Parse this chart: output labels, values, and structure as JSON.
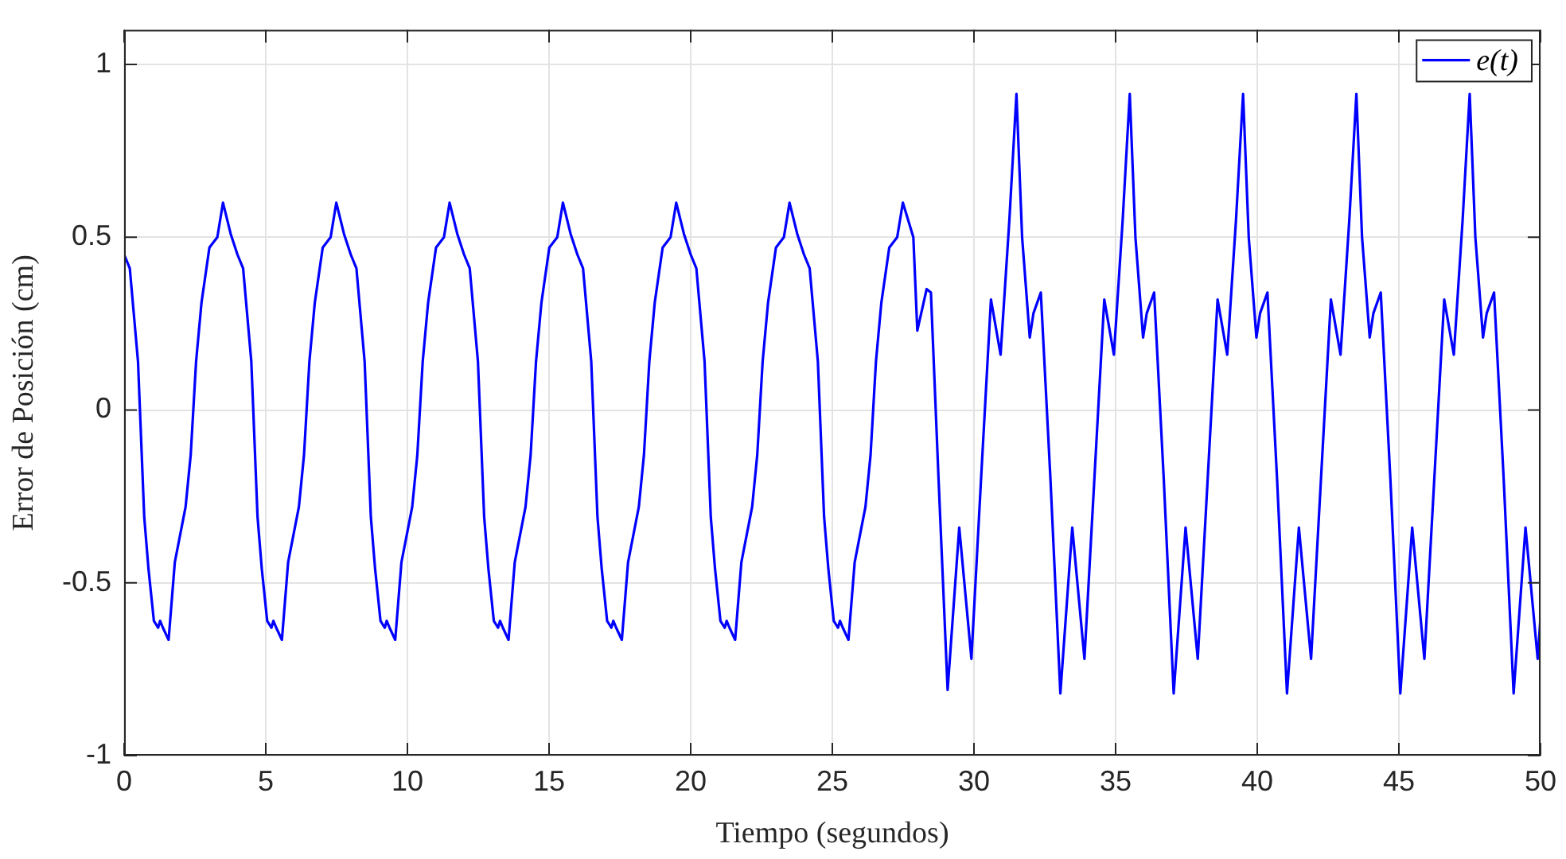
{
  "chart_data": {
    "type": "line",
    "xlabel": "Tiempo (segundos)",
    "ylabel": "Error de Posición (cm)",
    "xlim": [
      0,
      50
    ],
    "ylim": [
      -1,
      1.1
    ],
    "xticks": [
      0,
      5,
      10,
      15,
      20,
      25,
      30,
      35,
      40,
      45,
      50
    ],
    "yticks": [
      -1,
      -0.5,
      0,
      0.5,
      1
    ],
    "grid": true,
    "legend": "top right",
    "marker": "none",
    "line_style": "solid",
    "series": [
      {
        "name": "e(t)",
        "color": "#0000ff",
        "x": [
          0,
          0.2,
          0.49,
          0.71,
          0.86,
          1.05,
          1.2,
          1.27,
          1.37,
          1.57,
          1.79,
          2.17,
          2.35,
          2.54,
          2.73,
          3.01,
          3.29,
          3.49,
          3.76,
          4,
          4.2,
          4.49,
          4.71,
          4.86,
          5.05,
          5.2,
          5.27,
          5.37,
          5.57,
          5.79,
          6.17,
          6.35,
          6.54,
          6.73,
          7.01,
          7.29,
          7.49,
          7.76,
          8,
          8.2,
          8.49,
          8.71,
          8.86,
          9.05,
          9.2,
          9.27,
          9.37,
          9.57,
          9.79,
          10.17,
          10.35,
          10.54,
          10.73,
          11.01,
          11.29,
          11.49,
          11.76,
          12,
          12.2,
          12.49,
          12.71,
          12.86,
          13.05,
          13.2,
          13.27,
          13.37,
          13.57,
          13.79,
          14.17,
          14.35,
          14.54,
          14.73,
          15.01,
          15.29,
          15.49,
          15.76,
          16,
          16.2,
          16.49,
          16.71,
          16.86,
          17.05,
          17.2,
          17.27,
          17.37,
          17.57,
          17.79,
          18.17,
          18.35,
          18.54,
          18.73,
          19.01,
          19.29,
          19.49,
          19.76,
          20,
          20.2,
          20.49,
          20.71,
          20.86,
          21.05,
          21.2,
          21.27,
          21.37,
          21.57,
          21.79,
          22.17,
          22.35,
          22.54,
          22.73,
          23.01,
          23.29,
          23.49,
          23.76,
          24,
          24.2,
          24.49,
          24.71,
          24.86,
          25.05,
          25.2,
          25.27,
          25.37,
          25.57,
          25.79,
          26.17,
          26.35,
          26.54,
          26.73,
          27.01,
          27.29,
          27.49,
          27.86,
          28,
          28.33,
          28.48,
          28.75,
          29.07,
          29.48,
          29.91,
          30.25,
          30.6,
          30.94,
          31.25,
          31.5,
          31.7,
          31.97,
          32.1,
          32.36,
          32.7,
          33.05,
          33.47,
          33.9,
          34.25,
          34.6,
          34.94,
          35.25,
          35.5,
          35.7,
          35.97,
          36.1,
          36.36,
          36.7,
          37.05,
          37.47,
          37.9,
          38.25,
          38.6,
          38.94,
          39.25,
          39.5,
          39.7,
          39.97,
          40.1,
          40.36,
          40.7,
          41.05,
          41.47,
          41.9,
          42.25,
          42.6,
          42.94,
          43.25,
          43.5,
          43.7,
          43.97,
          44.1,
          44.36,
          44.7,
          45.05,
          45.47,
          45.9,
          46.25,
          46.6,
          46.94,
          47.25,
          47.5,
          47.7,
          47.97,
          48.1,
          48.36,
          48.7,
          49.05,
          49.47,
          49.9,
          50
        ],
        "values": [
          0.45,
          0.41,
          0.14,
          -0.31,
          -0.46,
          -0.61,
          -0.63,
          -0.61,
          -0.63,
          -0.665,
          -0.44,
          -0.28,
          -0.13,
          0.14,
          0.31,
          0.47,
          0.5,
          0.6,
          0.51,
          0.45,
          0.41,
          0.14,
          -0.31,
          -0.46,
          -0.61,
          -0.63,
          -0.61,
          -0.63,
          -0.665,
          -0.44,
          -0.28,
          -0.13,
          0.14,
          0.31,
          0.47,
          0.5,
          0.6,
          0.51,
          0.45,
          0.41,
          0.14,
          -0.31,
          -0.46,
          -0.61,
          -0.63,
          -0.61,
          -0.63,
          -0.665,
          -0.44,
          -0.28,
          -0.13,
          0.14,
          0.31,
          0.47,
          0.5,
          0.6,
          0.51,
          0.45,
          0.41,
          0.14,
          -0.31,
          -0.46,
          -0.61,
          -0.63,
          -0.61,
          -0.63,
          -0.665,
          -0.44,
          -0.28,
          -0.13,
          0.14,
          0.31,
          0.47,
          0.5,
          0.6,
          0.51,
          0.45,
          0.41,
          0.14,
          -0.31,
          -0.46,
          -0.61,
          -0.63,
          -0.61,
          -0.63,
          -0.665,
          -0.44,
          -0.28,
          -0.13,
          0.14,
          0.31,
          0.47,
          0.5,
          0.6,
          0.51,
          0.45,
          0.41,
          0.14,
          -0.31,
          -0.46,
          -0.61,
          -0.63,
          -0.61,
          -0.63,
          -0.665,
          -0.44,
          -0.28,
          -0.13,
          0.14,
          0.31,
          0.47,
          0.5,
          0.6,
          0.51,
          0.45,
          0.41,
          0.14,
          -0.31,
          -0.46,
          -0.61,
          -0.63,
          -0.61,
          -0.63,
          -0.665,
          -0.44,
          -0.28,
          -0.13,
          0.14,
          0.31,
          0.47,
          0.5,
          0.6,
          0.5,
          0.23,
          0.35,
          0.34,
          -0.2,
          -0.81,
          -0.34,
          -0.72,
          -0.2,
          0.32,
          0.16,
          0.55,
          0.915,
          0.5,
          0.21,
          0.28,
          0.34,
          -0.2,
          -0.82,
          -0.34,
          -0.72,
          -0.2,
          0.32,
          0.16,
          0.55,
          0.915,
          0.5,
          0.21,
          0.28,
          0.34,
          -0.2,
          -0.82,
          -0.34,
          -0.72,
          -0.2,
          0.32,
          0.16,
          0.55,
          0.915,
          0.5,
          0.21,
          0.28,
          0.34,
          -0.2,
          -0.82,
          -0.34,
          -0.72,
          -0.2,
          0.32,
          0.16,
          0.55,
          0.915,
          0.5,
          0.21,
          0.28,
          0.34,
          -0.2,
          -0.82,
          -0.34,
          -0.72,
          -0.2,
          0.32,
          0.16,
          0.55,
          0.915,
          0.5,
          0.21,
          0.28,
          0.34,
          -0.2,
          -0.82,
          -0.34,
          -0.72,
          -0.6
        ]
      }
    ]
  }
}
